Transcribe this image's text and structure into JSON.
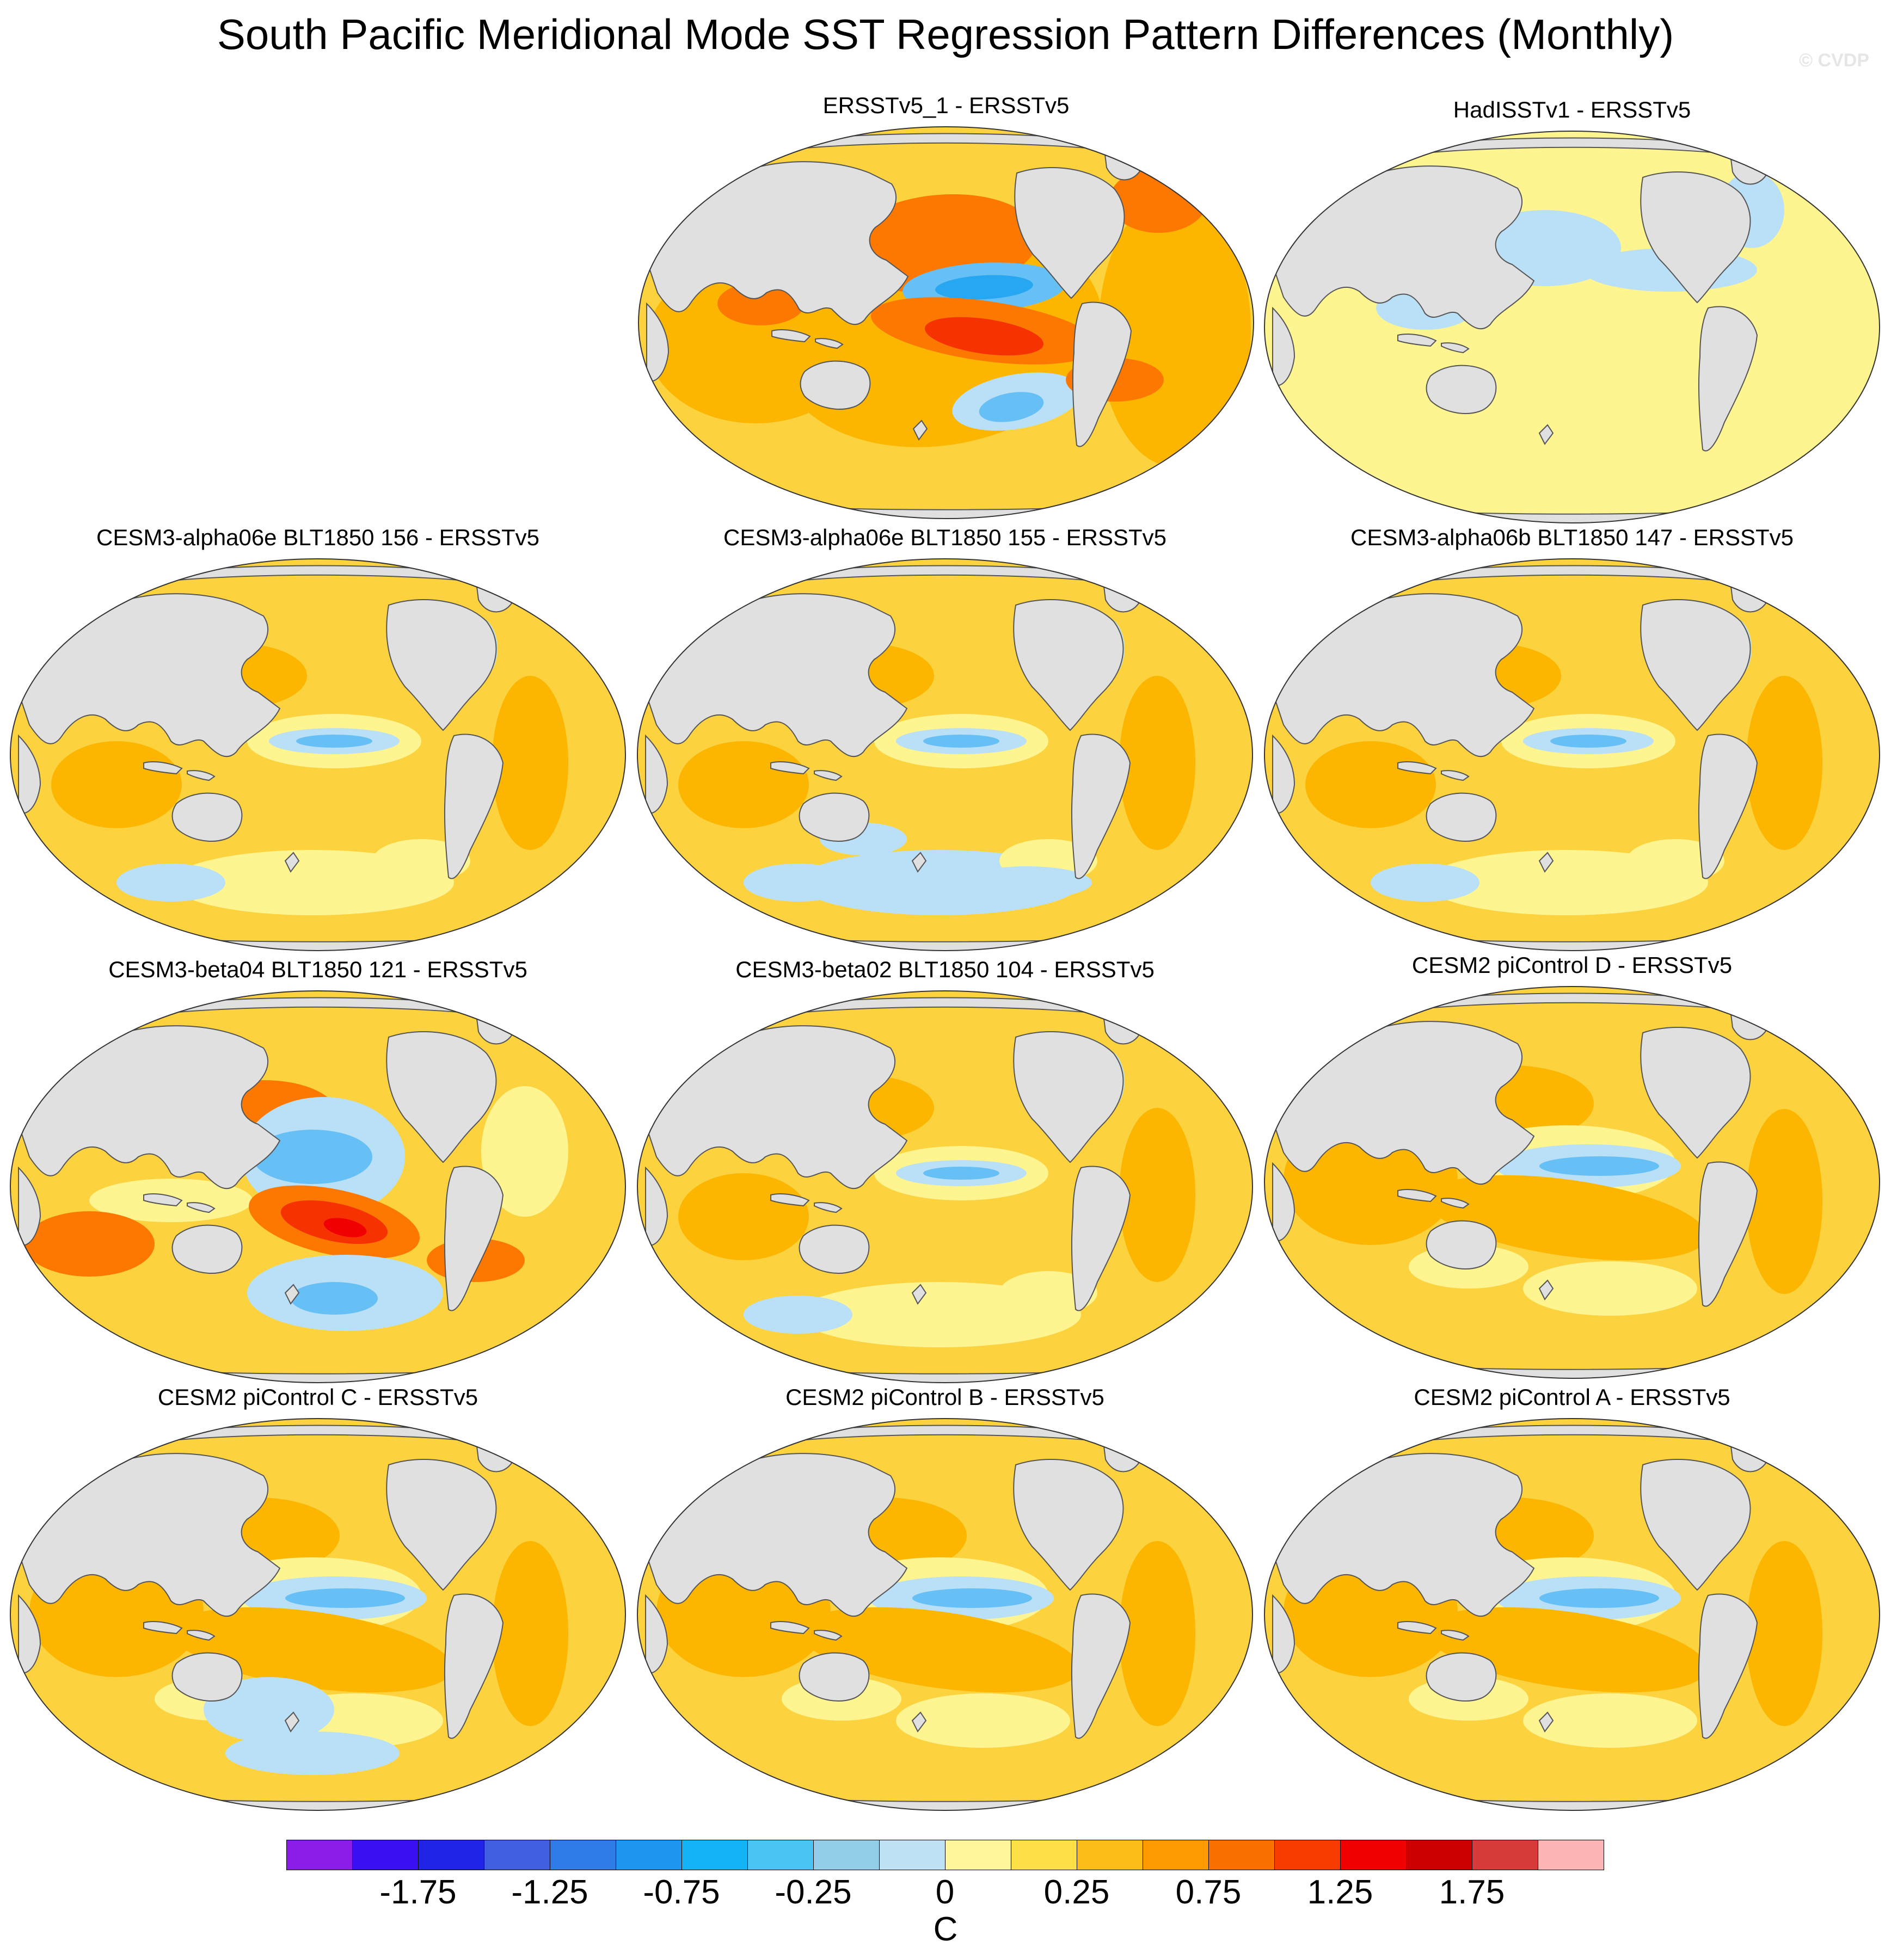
{
  "title": "South Pacific Meridional Mode SST Regression Pattern Differences (Monthly)",
  "watermark": "© CVDP",
  "colors": {
    "ocean_base": "#fcd33f",
    "land": "#e0e0e0",
    "coast": "#555555",
    "warm_light": "#fef490",
    "warm_mid": "#fdb600",
    "warm_strong": "#fc7800",
    "hot": "#f53200",
    "cool_light": "#b9e0f6",
    "cool_mid": "#66c0f5",
    "cool_strong": "#27a6f2"
  },
  "panels": [
    {
      "title": "ERSSTv5_1 - ERSSTv5",
      "style": "strong-warm"
    },
    {
      "title": "HadISSTv1 - ERSSTv5",
      "style": "weak"
    },
    {
      "title": "CESM3-alpha06e BLT1850 156 - ERSSTv5",
      "style": "model"
    },
    {
      "title": "CESM3-alpha06e BLT1850 155 - ERSSTv5",
      "style": "model"
    },
    {
      "title": "CESM3-alpha06b BLT1850 147 - ERSSTv5",
      "style": "model"
    },
    {
      "title": "CESM3-beta04 BLT1850 121 - ERSSTv5",
      "style": "strong-dipole"
    },
    {
      "title": "CESM3-beta02 BLT1850 104 - ERSSTv5",
      "style": "model"
    },
    {
      "title": "CESM2 piControl D - ERSSTv5",
      "style": "cesm2"
    },
    {
      "title": "CESM2 piControl C - ERSSTv5",
      "style": "cesm2"
    },
    {
      "title": "CESM2 piControl B - ERSSTv5",
      "style": "cesm2"
    },
    {
      "title": "CESM2 piControl A - ERSSTv5",
      "style": "cesm2"
    }
  ],
  "colorbar": {
    "colors": [
      "#8b1de8",
      "#3a10f2",
      "#1f24e6",
      "#3f5ee0",
      "#2f7ce8",
      "#1c96ef",
      "#13b4f6",
      "#4cc4f3",
      "#93cdea",
      "#bfe3f5",
      "#fff59a",
      "#fde047",
      "#fcbc17",
      "#fc9a00",
      "#fc7000",
      "#f83c00",
      "#f00000",
      "#cc0000",
      "#d83a3a",
      "#fcb4b4"
    ],
    "labels": [
      "-1.75",
      "-1.25",
      "-0.75",
      "-0.25",
      "0",
      "0.25",
      "0.75",
      "1.25",
      "1.75"
    ],
    "units": "C"
  }
}
